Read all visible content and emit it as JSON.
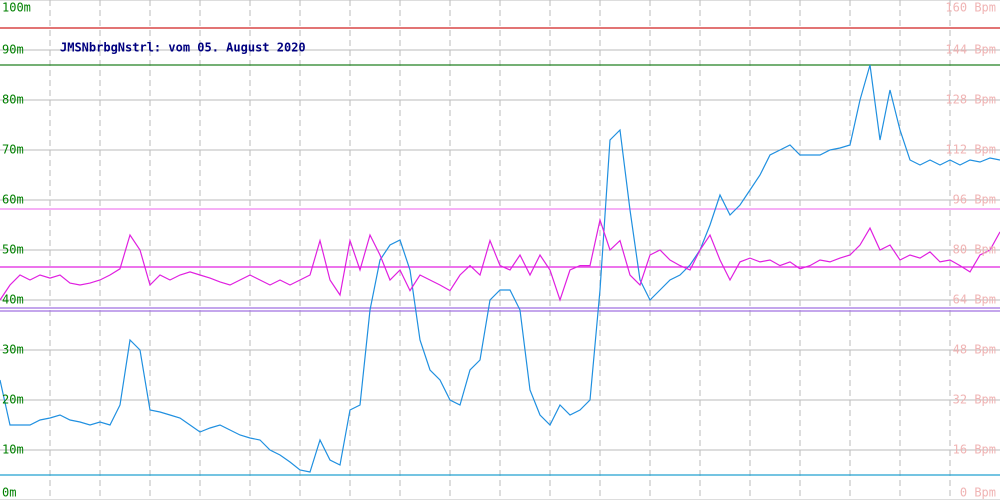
{
  "chart_data": {
    "type": "line",
    "title": "JMSNbrbgNstrl: vom 05. August 2020",
    "ylim": [
      0,
      100
    ],
    "yticks": [
      {
        "value": 0,
        "label": "0m"
      },
      {
        "value": 10,
        "label": "10m"
      },
      {
        "value": 20,
        "label": "20m"
      },
      {
        "value": 30,
        "label": "30m"
      },
      {
        "value": 40,
        "label": "40m"
      },
      {
        "value": 50,
        "label": "50m"
      },
      {
        "value": 60,
        "label": "60m"
      },
      {
        "value": 70,
        "label": "70m"
      },
      {
        "value": 80,
        "label": "80m"
      },
      {
        "value": 90,
        "label": "90m"
      },
      {
        "value": 100,
        "label": "100m"
      }
    ],
    "y2lim": [
      0,
      160
    ],
    "y2ticks": [
      {
        "value": 0,
        "label": "0 Bpm"
      },
      {
        "value": 16,
        "label": "16 Bpm"
      },
      {
        "value": 32,
        "label": "32 Bpm"
      },
      {
        "value": 48,
        "label": "48 Bpm"
      },
      {
        "value": 64,
        "label": "64 Bpm"
      },
      {
        "value": 80,
        "label": "80 Bpm"
      },
      {
        "value": 96,
        "label": "96 Bpm"
      },
      {
        "value": 112,
        "label": "112 Bpm"
      },
      {
        "value": 128,
        "label": "128 Bpm"
      },
      {
        "value": 144,
        "label": "144 Bpm"
      },
      {
        "value": 160,
        "label": "160 Bpm"
      }
    ],
    "ytick_color": "#008000",
    "y2tick_color": "#f0b4b4",
    "title_color": "#000080",
    "grid": true,
    "reference_lines": [
      {
        "value": 94.4,
        "color": "#d02020"
      },
      {
        "value": 87,
        "color": "#208020"
      },
      {
        "value": 58.2,
        "color": "#f080f0"
      },
      {
        "value": 46.6,
        "color": "#e020e0"
      },
      {
        "value": 38.4,
        "color": "#a070e0"
      },
      {
        "value": 37.8,
        "color": "#a070e0"
      },
      {
        "value": 5,
        "color": "#20a0d0"
      }
    ],
    "series": [
      {
        "color": "#2090e0",
        "values": [
          24,
          15,
          15,
          15,
          16,
          16.4,
          17,
          16,
          15.6,
          15,
          15.6,
          15,
          19,
          32,
          30,
          18,
          17.6,
          17,
          16.4,
          15,
          13.6,
          14.4,
          15,
          14,
          13,
          12.4,
          12,
          10,
          9,
          7.6,
          6,
          5.6,
          12,
          8,
          7,
          18,
          19,
          38,
          48,
          51,
          52,
          46,
          32,
          26,
          24,
          20,
          19,
          26,
          28,
          40,
          42,
          42,
          38,
          22,
          17,
          15,
          19,
          17,
          18,
          20,
          42,
          72,
          74,
          58,
          44,
          40,
          42,
          44,
          45,
          47,
          50,
          55,
          61,
          57,
          59,
          62,
          65,
          69,
          70,
          71,
          69,
          69,
          69,
          70,
          70.4,
          71,
          80,
          87,
          72,
          82,
          74,
          68,
          67,
          68,
          67,
          68,
          67,
          68,
          67.6,
          68.4,
          68
        ]
      },
      {
        "color": "#e020e0",
        "axis": "y2",
        "values": [
          64,
          68.8,
          72,
          70.4,
          72,
          71,
          72,
          69.4,
          68.8,
          69.4,
          70.4,
          72,
          74,
          84.8,
          80,
          68.8,
          72,
          70.4,
          72,
          73,
          72,
          71,
          69.8,
          68.8,
          70.4,
          72,
          70.4,
          68.8,
          70.4,
          68.8,
          70.4,
          72,
          83,
          70.4,
          65.6,
          83,
          73.6,
          84.8,
          78.4,
          70.4,
          73.6,
          67,
          72,
          70.4,
          68.8,
          67,
          72,
          75,
          72,
          83,
          75,
          73.6,
          78.4,
          72,
          78.4,
          73.6,
          64,
          73.6,
          75,
          75,
          89.6,
          80,
          83,
          72,
          68.8,
          78.4,
          80,
          76.8,
          75,
          73.6,
          80,
          84.8,
          76.8,
          70.4,
          76.2,
          77.4,
          76.2,
          76.8,
          75,
          76.2,
          74,
          75,
          76.8,
          76.2,
          77.4,
          78.4,
          81.6,
          87,
          80,
          81.6,
          76.8,
          78.4,
          77.4,
          79.4,
          76.2,
          76.8,
          75,
          73,
          78.4,
          80,
          85.8
        ]
      }
    ]
  }
}
